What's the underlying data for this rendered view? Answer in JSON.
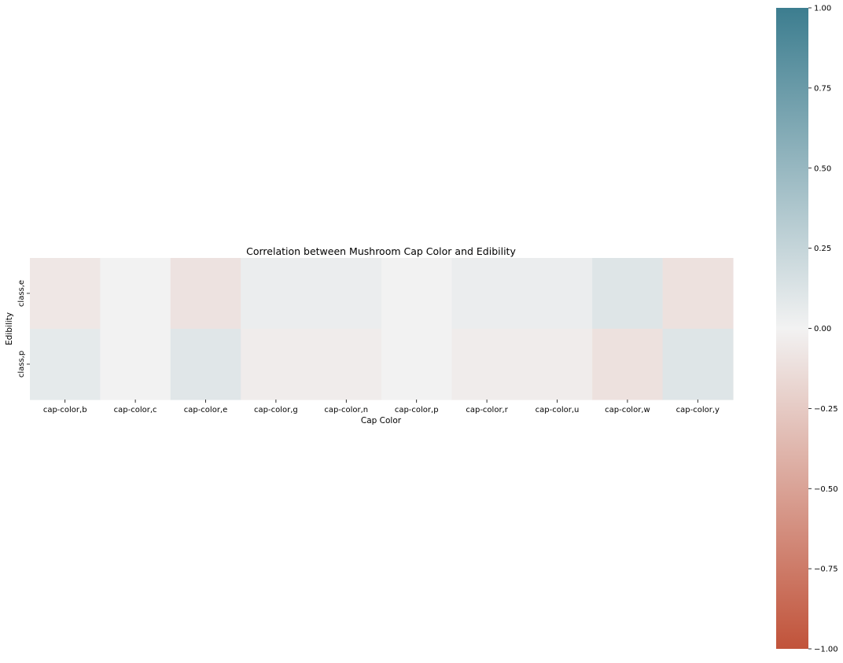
{
  "chart_data": {
    "type": "heatmap",
    "title": "Correlation between Mushroom Cap Color and Edibility",
    "xlabel": "Cap Color",
    "ylabel": "Edibility",
    "x_categories": [
      "cap-color,b",
      "cap-color,c",
      "cap-color,e",
      "cap-color,g",
      "cap-color,n",
      "cap-color,p",
      "cap-color,r",
      "cap-color,u",
      "cap-color,w",
      "cap-color,y"
    ],
    "y_categories": [
      "class,e",
      "class,p"
    ],
    "values": [
      [
        -0.07,
        0.0,
        -0.1,
        0.04,
        0.04,
        0.0,
        0.04,
        0.04,
        0.11,
        -0.11
      ],
      [
        0.07,
        0.0,
        0.1,
        -0.04,
        -0.04,
        0.0,
        -0.04,
        -0.04,
        -0.11,
        0.11
      ]
    ],
    "colorbar": {
      "min": -1.0,
      "max": 1.0,
      "ticks": [
        1.0,
        0.75,
        0.5,
        0.25,
        0.0,
        -0.25,
        -0.5,
        -0.75,
        -1.0
      ],
      "tick_labels": [
        "1.00",
        "0.75",
        "0.50",
        "0.25",
        "0.00",
        "−0.25",
        "−0.50",
        "−0.75",
        "−1.00"
      ],
      "low_color": "#c1533a",
      "mid_color": "#f2f2f2",
      "high_color": "#3c7d8f"
    }
  }
}
